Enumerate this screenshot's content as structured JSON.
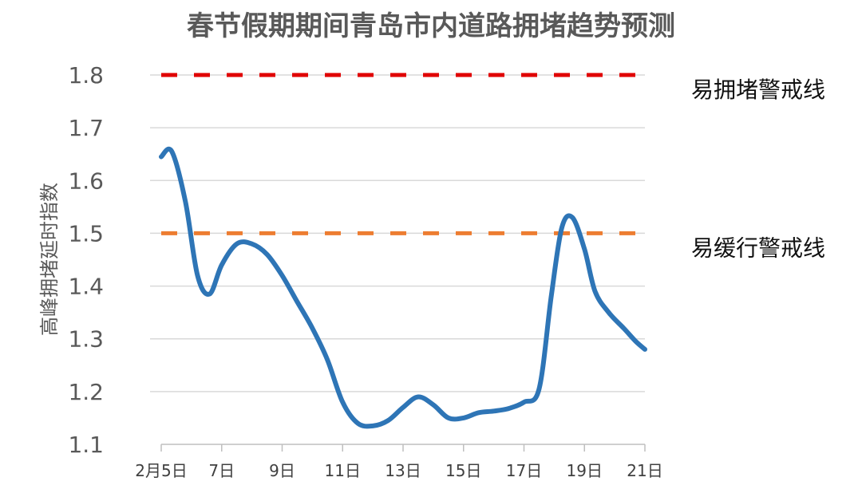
{
  "chart_data": {
    "type": "line",
    "title": "春节假期期间青岛市内道路拥堵趋势预测",
    "xlabel": "",
    "ylabel": "高峰拥堵延时指数",
    "ylim": [
      1.1,
      1.8
    ],
    "yticks": [
      "1.1",
      "1.2",
      "1.3",
      "1.4",
      "1.5",
      "1.6",
      "1.7",
      "1.8"
    ],
    "xticks": [
      {
        "day": 5,
        "label": "2月5日"
      },
      {
        "day": 7,
        "label": "7日"
      },
      {
        "day": 9,
        "label": "9日"
      },
      {
        "day": 11,
        "label": "11日"
      },
      {
        "day": 13,
        "label": "13日"
      },
      {
        "day": 15,
        "label": "15日"
      },
      {
        "day": 17,
        "label": "17日"
      },
      {
        "day": 19,
        "label": "19日"
      },
      {
        "day": 21,
        "label": "21日"
      }
    ],
    "xlim": [
      5,
      21
    ],
    "grid": true,
    "series": [
      {
        "color": "#2e75b6",
        "points": [
          [
            5.0,
            1.645
          ],
          [
            5.35,
            1.655
          ],
          [
            5.8,
            1.56
          ],
          [
            6.2,
            1.42
          ],
          [
            6.6,
            1.385
          ],
          [
            7.0,
            1.44
          ],
          [
            7.5,
            1.48
          ],
          [
            8.0,
            1.48
          ],
          [
            8.5,
            1.46
          ],
          [
            9.0,
            1.42
          ],
          [
            9.5,
            1.37
          ],
          [
            10.0,
            1.32
          ],
          [
            10.5,
            1.26
          ],
          [
            11.0,
            1.18
          ],
          [
            11.5,
            1.14
          ],
          [
            12.0,
            1.135
          ],
          [
            12.5,
            1.145
          ],
          [
            13.0,
            1.17
          ],
          [
            13.5,
            1.19
          ],
          [
            14.0,
            1.175
          ],
          [
            14.5,
            1.15
          ],
          [
            15.0,
            1.15
          ],
          [
            15.5,
            1.16
          ],
          [
            16.0,
            1.163
          ],
          [
            16.5,
            1.168
          ],
          [
            17.0,
            1.18
          ],
          [
            17.5,
            1.205
          ],
          [
            17.9,
            1.38
          ],
          [
            18.25,
            1.51
          ],
          [
            18.6,
            1.53
          ],
          [
            19.0,
            1.47
          ],
          [
            19.35,
            1.39
          ],
          [
            19.8,
            1.35
          ],
          [
            20.3,
            1.32
          ],
          [
            20.7,
            1.295
          ],
          [
            21.0,
            1.28
          ]
        ]
      }
    ],
    "reference_lines": [
      {
        "value": 1.8,
        "label": "易拥堵警戒线",
        "color": "#e00000"
      },
      {
        "value": 1.5,
        "label": "易缓行警戒线",
        "color": "#ed7d31"
      }
    ]
  }
}
